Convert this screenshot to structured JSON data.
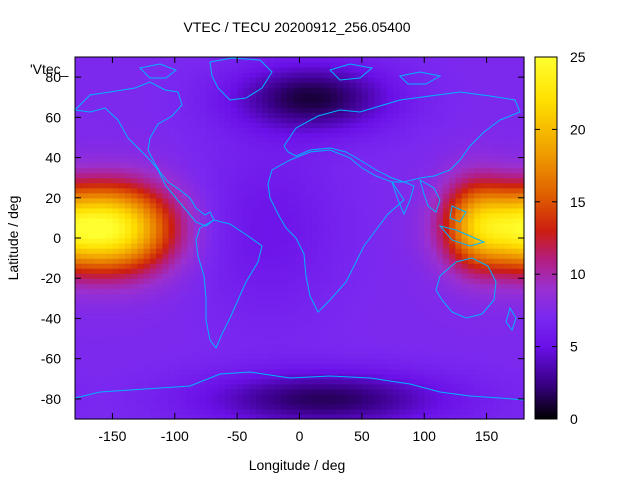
{
  "chart_data": {
    "type": "heatmap",
    "title": "VTEC / TECU 20200912_256.05400",
    "overlay_label": "'Vtec_",
    "xlabel": "Longitude / deg",
    "ylabel": "Latitude / deg",
    "xlim": [
      -180,
      180
    ],
    "ylim": [
      -90,
      90
    ],
    "x_ticks": [
      -150,
      -100,
      -50,
      0,
      50,
      100,
      150
    ],
    "y_ticks": [
      -80,
      -60,
      -40,
      -20,
      0,
      20,
      40,
      60,
      80
    ],
    "colorbar": {
      "min": 0,
      "max": 25,
      "ticks": [
        0,
        5,
        10,
        15,
        20,
        25
      ],
      "palette": [
        "#000000",
        "#3a0088",
        "#6a10e8",
        "#7a28f0",
        "#9a30d0",
        "#b41e80",
        "#cc1e10",
        "#e06000",
        "#f0a000",
        "#ffe000",
        "#ffff30"
      ],
      "palette_stops": [
        0,
        2.5,
        5,
        7,
        9,
        11,
        13,
        15.5,
        18.5,
        22,
        25
      ]
    },
    "grid": false,
    "legend": "none",
    "coastline_color": "#00b4ff",
    "field_features": [
      {
        "name": "base",
        "lon": 0,
        "lat": 0,
        "amplitude": 7.2
      },
      {
        "name": "pacific-anomaly-west",
        "lon": -145,
        "lat": 5,
        "amplitude": 14.5,
        "sigma_lon": 32,
        "sigma_lat": 15
      },
      {
        "name": "pacific-anomaly-east",
        "lon": 165,
        "lat": 5,
        "amplitude": 10.5,
        "sigma_lon": 30,
        "sigma_lat": 14
      },
      {
        "name": "asia-pacific-anomaly",
        "lon": 140,
        "lat": 8,
        "amplitude": 6.0,
        "sigma_lon": 18,
        "sigma_lat": 16
      },
      {
        "name": "atlantic-low",
        "lon": -25,
        "lat": 5,
        "amplitude": -1.8,
        "sigma_lon": 40,
        "sigma_lat": 30
      },
      {
        "name": "europe-arctic-low",
        "lon": 10,
        "lat": 70,
        "amplitude": -6.0,
        "sigma_lon": 45,
        "sigma_lat": 12
      },
      {
        "name": "antarctic-low",
        "lon": 20,
        "lat": -80,
        "amplitude": -5.5,
        "sigma_lon": 70,
        "sigma_lat": 10
      }
    ]
  }
}
